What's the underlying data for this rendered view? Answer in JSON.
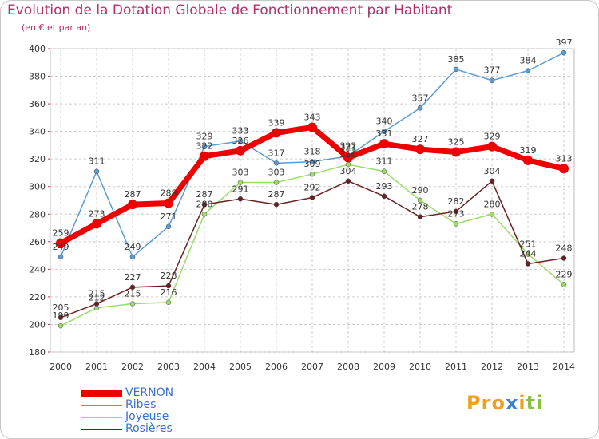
{
  "title": "Evolution de la Dotation Globale de Fonctionnement par Habitant",
  "subtitle": "(en € et par an)",
  "chart_data": {
    "type": "line",
    "x": [
      2000,
      2001,
      2002,
      2003,
      2004,
      2005,
      2006,
      2007,
      2008,
      2009,
      2010,
      2011,
      2012,
      2013,
      2014
    ],
    "ylim": [
      180,
      400
    ],
    "yticks": [
      180,
      200,
      220,
      240,
      260,
      280,
      300,
      320,
      340,
      360,
      380,
      400
    ],
    "grid": true,
    "legend_position": "bottom-left",
    "series": [
      {
        "name": "Ribes",
        "color": "#5b9bd5",
        "values": [
          249,
          311,
          249,
          271,
          329,
          333,
          317,
          318,
          322,
          340,
          357,
          385,
          377,
          384,
          397
        ]
      },
      {
        "name": "Joyeuse",
        "color": "#99dd66",
        "values": [
          199,
          212,
          215,
          216,
          280,
          303,
          303,
          309,
          316,
          311,
          290,
          273,
          280,
          251,
          229
        ]
      },
      {
        "name": "Rosières",
        "color": "#6b2020",
        "values": [
          205,
          215,
          227,
          228,
          287,
          291,
          287,
          292,
          304,
          293,
          278,
          282,
          304,
          244,
          248
        ]
      },
      {
        "name": "VERNON",
        "color": "#ee0000",
        "values": [
          259,
          273,
          287,
          288,
          322,
          326,
          339,
          343,
          321,
          331,
          327,
          325,
          329,
          319,
          313
        ]
      }
    ]
  },
  "legend": [
    {
      "label": "VERNON",
      "color": "#ee0000",
      "thick": true
    },
    {
      "label": "Ribes",
      "color": "#5b9bd5",
      "thick": false
    },
    {
      "label": "Joyeuse",
      "color": "#99dd66",
      "thick": false
    },
    {
      "label": "Rosières",
      "color": "#6b2020",
      "thick": false
    }
  ],
  "logo": {
    "text": "Proxiti",
    "letters": [
      {
        "ch": "P",
        "color": "#f0a020"
      },
      {
        "ch": "r",
        "color": "#f0a020"
      },
      {
        "ch": "o",
        "color": "#f0a020"
      },
      {
        "ch": "x",
        "color": "#3a7fd0"
      },
      {
        "ch": "i",
        "color": "#f0a020"
      },
      {
        "ch": "t",
        "color": "#88c040"
      },
      {
        "ch": "i",
        "color": "#88c040"
      }
    ]
  }
}
